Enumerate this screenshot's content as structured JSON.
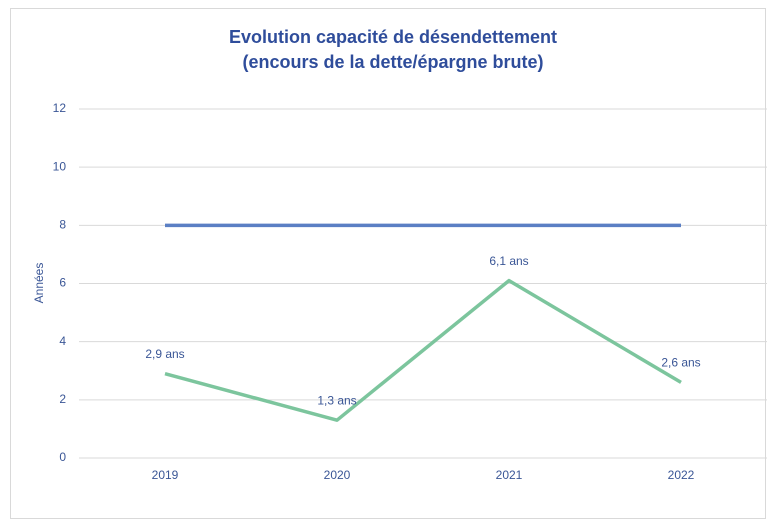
{
  "chart_data": {
    "type": "line",
    "title": [
      "Evolution capacité de désendettement",
      "(encours de la dette/épargne brute)"
    ],
    "y_label": "Années",
    "categories": [
      "2019",
      "2020",
      "2021",
      "2022"
    ],
    "series": [
      {
        "color": "#5b7fc4",
        "values": [
          8,
          8,
          8,
          8
        ]
      },
      {
        "color": "#7cc59d",
        "values": [
          2.9,
          1.3,
          6.1,
          2.6
        ],
        "value_labels": [
          "2,9 ans",
          "1,3 ans",
          "6,1 ans",
          "2,6 ans"
        ]
      }
    ],
    "ylim": [
      0,
      12
    ],
    "yticks": [
      0,
      2,
      4,
      6,
      8,
      10,
      12
    ],
    "grid": true
  }
}
